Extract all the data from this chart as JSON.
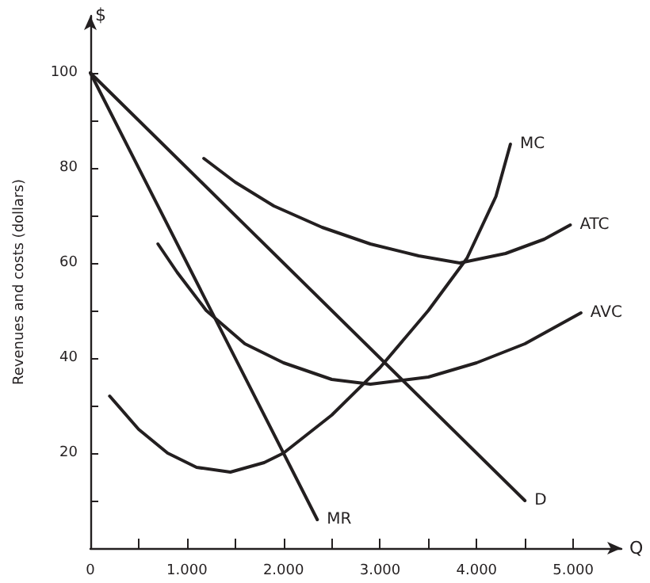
{
  "chart_data": {
    "type": "line",
    "xlabel": "Q",
    "ylabel": "Revenues and costs (dollars)",
    "annotations": [
      "$"
    ],
    "xlim": [
      0,
      5500
    ],
    "ylim": [
      0,
      112
    ],
    "xticks": [
      {
        "value": 0,
        "label": "0"
      },
      {
        "value": 500,
        "label": null
      },
      {
        "value": 1000,
        "label": "1.000"
      },
      {
        "value": 1500,
        "label": null
      },
      {
        "value": 2000,
        "label": "2.000"
      },
      {
        "value": 2500,
        "label": null
      },
      {
        "value": 3000,
        "label": "3.000"
      },
      {
        "value": 3500,
        "label": null
      },
      {
        "value": 4000,
        "label": "4.000"
      },
      {
        "value": 4500,
        "label": null
      },
      {
        "value": 5000,
        "label": "5.000"
      }
    ],
    "yticks": [
      {
        "value": 10,
        "label": null
      },
      20,
      {
        "value": 30,
        "label": null
      },
      40,
      {
        "value": 50,
        "label": null
      },
      60,
      {
        "value": 70,
        "label": null
      },
      80,
      {
        "value": 90,
        "label": null
      },
      100
    ],
    "grid": false,
    "legend": false,
    "marker": "none",
    "line_style": "solid",
    "series": [
      {
        "name": "MC",
        "color": "#231f20",
        "x": [
          200,
          500,
          800,
          1100,
          1450,
          1800,
          2000,
          2500,
          3000,
          3500,
          3900,
          4200,
          4350
        ],
        "values": [
          32,
          25,
          20,
          17,
          16,
          18,
          20,
          28,
          38,
          50,
          61,
          74,
          85
        ]
      },
      {
        "name": "ATC",
        "color": "#231f20",
        "x": [
          1175,
          1500,
          1900,
          2400,
          2900,
          3400,
          3825,
          4300,
          4700,
          4970
        ],
        "values": [
          82,
          77,
          72,
          67.5,
          64,
          61.5,
          60,
          62,
          65,
          68
        ]
      },
      {
        "name": "AVC",
        "color": "#231f20",
        "x": [
          700,
          900,
          1200,
          1600,
          2000,
          2500,
          2900,
          3500,
          4000,
          4500,
          5080
        ],
        "values": [
          64,
          58,
          50,
          43,
          39,
          35.5,
          34.5,
          36,
          39,
          43,
          49.5
        ]
      },
      {
        "name": "D",
        "color": "#231f20",
        "x": [
          0,
          4500
        ],
        "values": [
          100,
          10
        ]
      },
      {
        "name": "MR",
        "color": "#231f20",
        "x": [
          0,
          2350
        ],
        "values": [
          100,
          6
        ]
      }
    ]
  }
}
